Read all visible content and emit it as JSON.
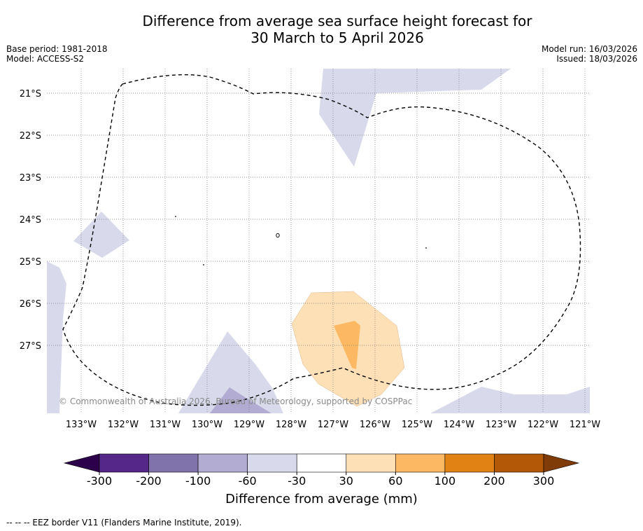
{
  "header": {
    "title_line1": "Difference from average sea surface height forecast for",
    "title_line2": "30 March to 5 April 2026",
    "base_period": "Base period: 1981-2018",
    "model": "Model: ACCESS-S2",
    "model_run": "Model run: 16/03/2026",
    "issued": "Issued: 18/03/2026"
  },
  "map": {
    "lat_labels": [
      "21°S",
      "22°S",
      "23°S",
      "24°S",
      "25°S",
      "26°S",
      "27°S"
    ],
    "lon_labels": [
      "133°W",
      "132°W",
      "131°W",
      "130°W",
      "129°W",
      "128°W",
      "127°W",
      "126°W",
      "125°W",
      "124°W",
      "123°W",
      "122°W",
      "121°W"
    ],
    "copyright": "© Commonwealth of Australia 2026, Bureau of Meteorology, supported by COSPPac"
  },
  "colorbar": {
    "label": "Difference from average (mm)",
    "ticks": [
      "-300",
      "-200",
      "-100",
      "-60",
      "-30",
      "30",
      "60",
      "100",
      "200",
      "300"
    ],
    "colors": {
      "under": "#2d004b",
      "c1": "#542788",
      "c2": "#8073ac",
      "c3": "#b2abd2",
      "c4": "#d8daeb",
      "c5": "#ffffff",
      "c6": "#fee0b6",
      "c7": "#fdb863",
      "c8": "#e08214",
      "c9": "#b35806",
      "over": "#7f3b08"
    }
  },
  "footnote": "--  --  -- EEZ border V11 (Flanders Marine Institute, 2019)."
}
